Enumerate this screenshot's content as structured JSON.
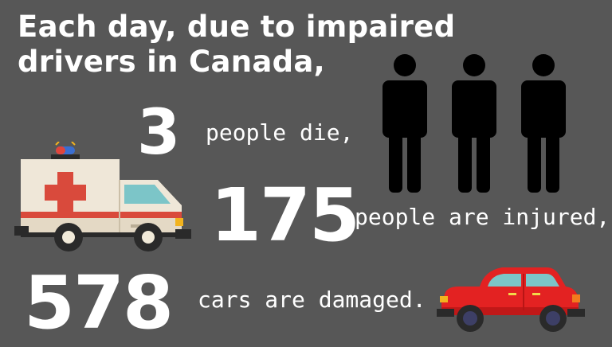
{
  "headline": {
    "line1": "Each day, due to impaired",
    "line2": "drivers in Canada,"
  },
  "stats": {
    "deaths": {
      "number": "3",
      "caption": "people die,"
    },
    "injuries": {
      "number": "175",
      "caption": "people are injured,"
    },
    "cars": {
      "number": "578",
      "caption": "cars are damaged."
    }
  },
  "icons": {
    "people": [
      "person-icon",
      "person-icon",
      "person-icon"
    ],
    "ambulance": "ambulance-icon",
    "car": "car-icon"
  },
  "colors": {
    "background": "#575757",
    "text": "#ffffff",
    "person": "#000000",
    "car_body": "#e32222",
    "ambulance_cross": "#d94a3c"
  }
}
